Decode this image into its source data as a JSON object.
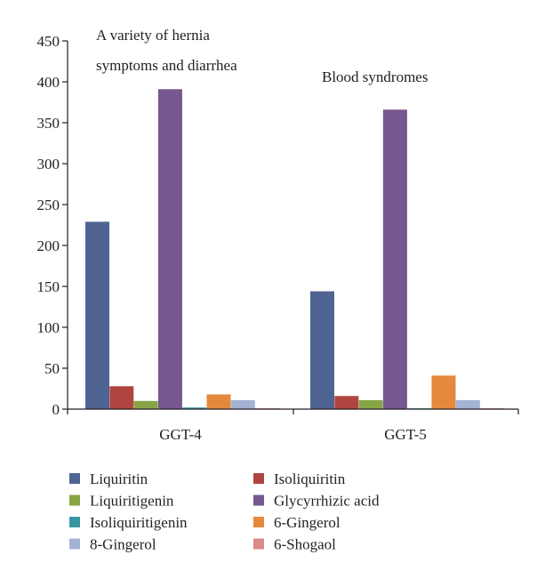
{
  "chart_data": {
    "type": "bar",
    "categories": [
      "GGT-4",
      "GGT-5"
    ],
    "series": [
      {
        "name": "Liquiritin",
        "color": "#4f6493",
        "values": [
          229,
          144
        ]
      },
      {
        "name": "Isoliquiritin",
        "color": "#b0453f",
        "values": [
          28,
          16
        ]
      },
      {
        "name": "Liquiritigenin",
        "color": "#87a547",
        "values": [
          10,
          11
        ]
      },
      {
        "name": "Glycyrrhizic acid",
        "color": "#76578f",
        "values": [
          391,
          366
        ]
      },
      {
        "name": "Isoliquiritigenin",
        "color": "#3b96a4",
        "values": [
          2,
          1
        ]
      },
      {
        "name": "6-Gingerol",
        "color": "#e58a3d",
        "values": [
          18,
          41
        ]
      },
      {
        "name": "8-Gingerol",
        "color": "#a3b3d3",
        "values": [
          11,
          11
        ]
      },
      {
        "name": "6-Shogaol",
        "color": "#dc8a85",
        "values": [
          1,
          1
        ]
      }
    ],
    "yticks": [
      0,
      50,
      100,
      150,
      200,
      250,
      300,
      350,
      400,
      450
    ],
    "ylim": [
      0,
      450
    ],
    "annotations": [
      {
        "lines": [
          "A variety of hernia",
          "symptoms and diarrhea"
        ]
      },
      {
        "lines": [
          "Blood syndromes"
        ]
      }
    ],
    "legend_position": "bottom",
    "grid": false
  }
}
